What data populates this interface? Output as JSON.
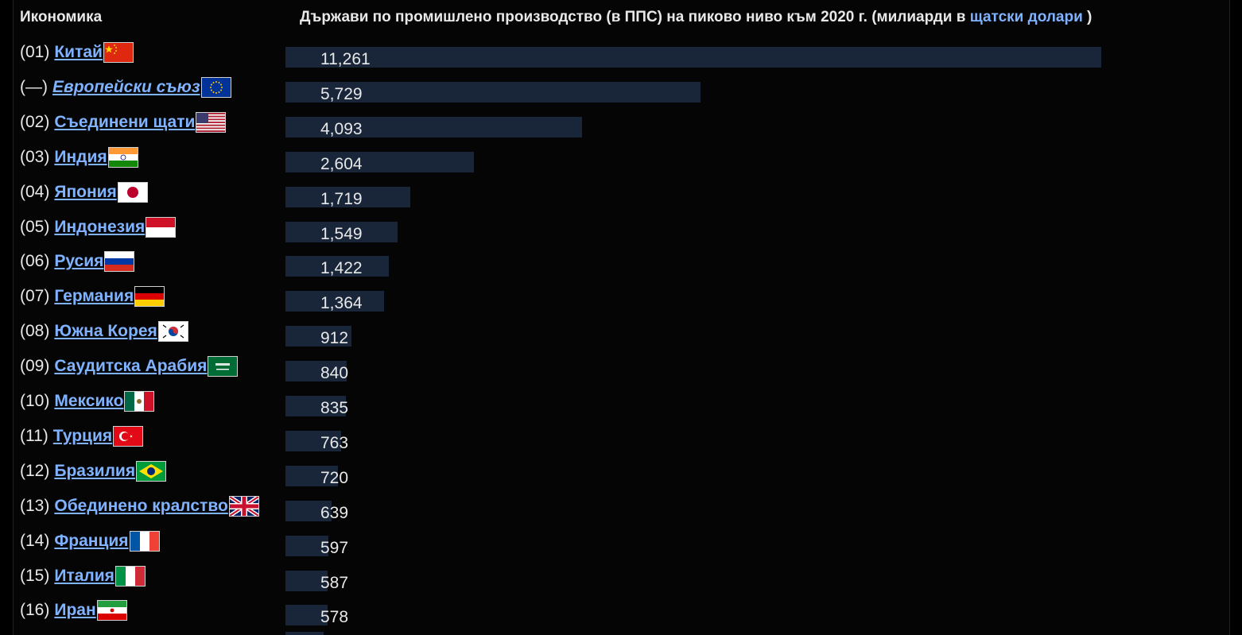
{
  "header": {
    "column_economy": "Икономика",
    "title_prefix": "Държави по промишлено производство (в ППС) на пиково ниво към 2020 г. (милиарди в ",
    "title_link": "щатски долари",
    "title_suffix": " )"
  },
  "colors": {
    "background": "#000000",
    "bar": "#19263a",
    "link": "#7fb2ff",
    "text": "#e8e8e8"
  },
  "chart_data": {
    "type": "bar",
    "orientation": "horizontal",
    "title": "Държави по промишлено производство (в ППС) на пиково ниво към 2020 г. (милиарди в щатски долари )",
    "xlim": [
      0,
      11261
    ],
    "categories": [
      "Китай",
      "Европейски съюз",
      "Съединени щати",
      "Индия",
      "Япония",
      "Индонезия",
      "Русия",
      "Германия",
      "Южна Корея",
      "Саудитска Арабия",
      "Мексико",
      "Турция",
      "Бразилия",
      "Обединено кралство",
      "Франция",
      "Италия",
      "Иран"
    ],
    "values": [
      11261,
      5729,
      4093,
      2604,
      1719,
      1549,
      1422,
      1364,
      912,
      840,
      835,
      763,
      720,
      639,
      597,
      587,
      578
    ]
  },
  "rows": [
    {
      "rank": "(01)",
      "country": "Китай",
      "flag": "china-flag-icon",
      "value": 11261,
      "value_label": "11,261"
    },
    {
      "rank": "(—)",
      "country": "Европейски съюз",
      "flag": "eu-flag-icon",
      "value": 5729,
      "value_label": "5,729",
      "italic": true
    },
    {
      "rank": "(02)",
      "country": "Съединени щати",
      "flag": "usa-flag-icon",
      "value": 4093,
      "value_label": "4,093"
    },
    {
      "rank": "(03)",
      "country": "Индия",
      "flag": "india-flag-icon",
      "value": 2604,
      "value_label": "2,604"
    },
    {
      "rank": "(04)",
      "country": "Япония",
      "flag": "japan-flag-icon",
      "value": 1719,
      "value_label": "1,719"
    },
    {
      "rank": "(05)",
      "country": "Индонезия",
      "flag": "indonesia-flag-icon",
      "value": 1549,
      "value_label": "1,549"
    },
    {
      "rank": "(06)",
      "country": "Русия",
      "flag": "russia-flag-icon",
      "value": 1422,
      "value_label": "1,422"
    },
    {
      "rank": "(07)",
      "country": "Германия",
      "flag": "germany-flag-icon",
      "value": 1364,
      "value_label": "1,364"
    },
    {
      "rank": "(08)",
      "country": "Южна Корея",
      "flag": "south-korea-flag-icon",
      "value": 912,
      "value_label": "912"
    },
    {
      "rank": "(09)",
      "country": "Саудитска Арабия",
      "flag": "saudi-arabia-flag-icon",
      "value": 840,
      "value_label": "840"
    },
    {
      "rank": "(10)",
      "country": "Мексико",
      "flag": "mexico-flag-icon",
      "value": 835,
      "value_label": "835"
    },
    {
      "rank": "(11)",
      "country": "Турция",
      "flag": "turkey-flag-icon",
      "value": 763,
      "value_label": "763"
    },
    {
      "rank": "(12)",
      "country": "Бразилия",
      "flag": "brazil-flag-icon",
      "value": 720,
      "value_label": "720"
    },
    {
      "rank": "(13)",
      "country": "Обединено кралство",
      "flag": "uk-flag-icon",
      "value": 639,
      "value_label": "639"
    },
    {
      "rank": "(14)",
      "country": "Франция",
      "flag": "france-flag-icon",
      "value": 597,
      "value_label": "597"
    },
    {
      "rank": "(15)",
      "country": "Италия",
      "flag": "italy-flag-icon",
      "value": 587,
      "value_label": "587"
    },
    {
      "rank": "(16)",
      "country": "Иран",
      "flag": "iran-flag-icon",
      "value": 578,
      "value_label": "578"
    }
  ]
}
